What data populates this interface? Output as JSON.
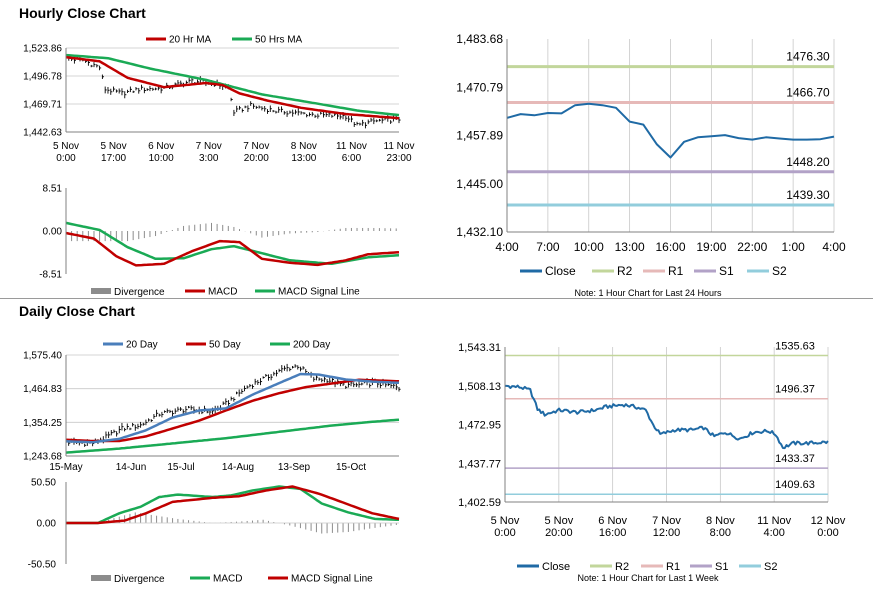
{
  "sections": {
    "hourly_title": "Hourly Close Chart",
    "daily_title": "Daily Close Chart"
  },
  "colors": {
    "ma20": "#c00000",
    "ma50": "#1aaa55",
    "price": "#000000",
    "hist": "#8c8c8c",
    "macd_h": "#c00000",
    "signal_h": "#1aaa55",
    "macd_d": "#1aaa55",
    "signal_d": "#c00000",
    "close": "#1f6aa5",
    "r2": "#c2d69b",
    "r1": "#e6b9b8",
    "s1": "#b2a2c7",
    "s2": "#92cddc",
    "ma20_d": "#4a7ebb",
    "ma50_d": "#c00000",
    "ma200_d": "#1aaa55",
    "axis": "#808080"
  },
  "chart_data": [
    {
      "id": "hourly_price",
      "type": "line",
      "legend": [
        "20 Hr MA",
        "50 Hrs MA"
      ],
      "x_tick_labels": [
        "5 Nov\n0:00",
        "5 Nov\n17:00",
        "6 Nov\n10:00",
        "7 Nov\n3:00",
        "7 Nov\n20:00",
        "8 Nov\n13:00",
        "11 Nov\n6:00",
        "11 Nov\n23:00"
      ],
      "y_tick_labels": [
        "1,523.86",
        "1,496.78",
        "1,469.71",
        "1,442.63"
      ],
      "ylim": [
        1442.63,
        1523.86
      ],
      "n": 120,
      "series": [
        {
          "name": "Price",
          "color_key": "price",
          "anchors": [
            [
              0,
              1514
            ],
            [
              6,
              1512
            ],
            [
              12,
              1505
            ],
            [
              14,
              1484
            ],
            [
              20,
              1480
            ],
            [
              26,
              1484
            ],
            [
              35,
              1485
            ],
            [
              45,
              1492
            ],
            [
              52,
              1490
            ],
            [
              58,
              1486
            ],
            [
              60,
              1462
            ],
            [
              66,
              1468
            ],
            [
              75,
              1463
            ],
            [
              90,
              1459
            ],
            [
              100,
              1458
            ],
            [
              104,
              1449
            ],
            [
              110,
              1453
            ],
            [
              119,
              1455
            ]
          ]
        },
        {
          "name": "20 Hr MA",
          "color_key": "ma20",
          "anchors": [
            [
              0,
              1515
            ],
            [
              12,
              1511
            ],
            [
              22,
              1495
            ],
            [
              35,
              1486
            ],
            [
              50,
              1490
            ],
            [
              56,
              1488
            ],
            [
              62,
              1480
            ],
            [
              72,
              1473
            ],
            [
              84,
              1466
            ],
            [
              100,
              1460
            ],
            [
              119,
              1456
            ]
          ]
        },
        {
          "name": "50 Hrs MA",
          "color_key": "ma50",
          "anchors": [
            [
              0,
              1517
            ],
            [
              15,
              1514
            ],
            [
              30,
              1504
            ],
            [
              50,
              1493
            ],
            [
              70,
              1479
            ],
            [
              90,
              1470
            ],
            [
              105,
              1463
            ],
            [
              119,
              1459
            ]
          ]
        }
      ]
    },
    {
      "id": "hourly_macd",
      "type": "line",
      "legend": [
        "Divergence",
        "MACD",
        "MACD Signal Line"
      ],
      "y_tick_labels": [
        "8.51",
        "0.00",
        "-8.51"
      ],
      "ylim": [
        -8.51,
        8.51
      ],
      "n": 120,
      "series": [
        {
          "name": "MACD",
          "color_key": "macd_h",
          "anchors": [
            [
              0,
              -0.4
            ],
            [
              10,
              -1.5
            ],
            [
              18,
              -5
            ],
            [
              25,
              -6.8
            ],
            [
              35,
              -6.5
            ],
            [
              45,
              -4
            ],
            [
              55,
              -2
            ],
            [
              62,
              -2.2
            ],
            [
              70,
              -5.5
            ],
            [
              80,
              -6.3
            ],
            [
              90,
              -6.7
            ],
            [
              100,
              -5.8
            ],
            [
              108,
              -4.6
            ],
            [
              119,
              -4.2
            ]
          ]
        },
        {
          "name": "MACD Signal Line",
          "color_key": "signal_h",
          "anchors": [
            [
              0,
              1.6
            ],
            [
              12,
              0.2
            ],
            [
              22,
              -3.2
            ],
            [
              32,
              -5.5
            ],
            [
              42,
              -5.4
            ],
            [
              52,
              -3.6
            ],
            [
              60,
              -3.0
            ],
            [
              70,
              -4.4
            ],
            [
              80,
              -5.8
            ],
            [
              95,
              -6.5
            ],
            [
              108,
              -5.2
            ],
            [
              119,
              -4.8
            ]
          ]
        },
        {
          "name": "Divergence",
          "color_key": "hist",
          "anchors": [
            [
              0,
              -2
            ],
            [
              12,
              -2
            ],
            [
              22,
              -2
            ],
            [
              32,
              -1
            ],
            [
              42,
              1
            ],
            [
              52,
              1.6
            ],
            [
              60,
              0.8
            ],
            [
              70,
              -1.3
            ],
            [
              80,
              -0.5
            ],
            [
              90,
              -0.2
            ],
            [
              100,
              0.6
            ],
            [
              110,
              0.6
            ],
            [
              119,
              0.5
            ]
          ]
        }
      ]
    },
    {
      "id": "hourly_pivots",
      "type": "line",
      "legend": [
        "Close",
        "R2",
        "R1",
        "S1",
        "S2"
      ],
      "note": "Note: 1 Hour Chart for Last 24 Hours",
      "x_tick_labels": [
        "4:00",
        "7:00",
        "10:00",
        "13:00",
        "16:00",
        "19:00",
        "22:00",
        "1:00",
        "4:00"
      ],
      "y_tick_labels": [
        "1,483.68",
        "1,470.79",
        "1,457.89",
        "1,445.00",
        "1,432.10"
      ],
      "ylim": [
        1432.1,
        1483.68
      ],
      "levels": [
        {
          "name": "R2",
          "value": 1476.3,
          "label": "1476.30"
        },
        {
          "name": "R1",
          "value": 1466.7,
          "label": "1466.70"
        },
        {
          "name": "S1",
          "value": 1448.2,
          "label": "1448.20"
        },
        {
          "name": "S2",
          "value": 1439.3,
          "label": "1439.30"
        }
      ],
      "close_x": [
        0,
        1,
        2,
        3,
        4,
        5,
        6,
        7,
        8,
        9,
        10,
        11,
        12,
        13,
        14,
        15,
        16,
        17,
        18,
        19,
        20,
        21,
        22,
        23,
        24
      ],
      "close_y": [
        1462.6,
        1463.6,
        1463.3,
        1463.9,
        1463.8,
        1466.0,
        1466.4,
        1466.0,
        1465.3,
        1461.6,
        1460.8,
        1455.5,
        1452.0,
        1456.2,
        1457.4,
        1457.7,
        1458.0,
        1457.2,
        1456.8,
        1457.4,
        1457.1,
        1456.8,
        1456.8,
        1456.9,
        1457.6
      ]
    },
    {
      "id": "daily_price",
      "type": "line",
      "legend": [
        "20 Day",
        "50 Day",
        "200 Day"
      ],
      "x_tick_labels": [
        "15-May",
        "14-Jun",
        "15-Jul",
        "14-Aug",
        "13-Sep",
        "15-Oct"
      ],
      "y_tick_labels": [
        "1,575.40",
        "1,464.83",
        "1,354.25",
        "1,243.68"
      ],
      "ylim": [
        1243.68,
        1575.4
      ],
      "n": 126,
      "series": [
        {
          "name": "Price",
          "color_key": "price",
          "anchors": [
            [
              0,
              1290
            ],
            [
              5,
              1287
            ],
            [
              10,
              1286
            ],
            [
              15,
              1305
            ],
            [
              21,
              1333
            ],
            [
              28,
              1345
            ],
            [
              35,
              1382
            ],
            [
              45,
              1397
            ],
            [
              55,
              1390
            ],
            [
              60,
              1415
            ],
            [
              68,
              1471
            ],
            [
              76,
              1505
            ],
            [
              82,
              1530
            ],
            [
              87,
              1540
            ],
            [
              93,
              1498
            ],
            [
              98,
              1495
            ],
            [
              104,
              1476
            ],
            [
              110,
              1477
            ],
            [
              116,
              1485
            ],
            [
              120,
              1476
            ],
            [
              123,
              1472
            ],
            [
              125,
              1466
            ]
          ]
        },
        {
          "name": "20 Day",
          "color_key": "ma20_d",
          "anchors": [
            [
              0,
              1292
            ],
            [
              10,
              1289
            ],
            [
              20,
              1300
            ],
            [
              30,
              1328
            ],
            [
              40,
              1370
            ],
            [
              50,
              1393
            ],
            [
              60,
              1400
            ],
            [
              70,
              1445
            ],
            [
              80,
              1483
            ],
            [
              88,
              1513
            ],
            [
              95,
              1511
            ],
            [
              105,
              1495
            ],
            [
              115,
              1488
            ],
            [
              125,
              1484
            ]
          ]
        },
        {
          "name": "50 Day",
          "color_key": "ma50_d",
          "anchors": [
            [
              0,
              1297
            ],
            [
              10,
              1293
            ],
            [
              20,
              1293
            ],
            [
              30,
              1308
            ],
            [
              40,
              1334
            ],
            [
              50,
              1360
            ],
            [
              60,
              1393
            ],
            [
              70,
              1425
            ],
            [
              80,
              1450
            ],
            [
              90,
              1470
            ],
            [
              100,
              1482
            ],
            [
              110,
              1494
            ],
            [
              125,
              1489
            ]
          ]
        },
        {
          "name": "200 Day",
          "color_key": "ma200_d",
          "anchors": [
            [
              0,
              1255
            ],
            [
              20,
              1268
            ],
            [
              40,
              1285
            ],
            [
              60,
              1302
            ],
            [
              80,
              1323
            ],
            [
              100,
              1344
            ],
            [
              115,
              1356
            ],
            [
              125,
              1363
            ]
          ]
        }
      ]
    },
    {
      "id": "daily_macd",
      "type": "line",
      "legend": [
        "Divergence",
        "MACD",
        "MACD Signal Line"
      ],
      "y_tick_labels": [
        "50.50",
        "0.00",
        "-50.50"
      ],
      "ylim": [
        -50.5,
        50.5
      ],
      "n": 126,
      "series": [
        {
          "name": "MACD",
          "color_key": "macd_d",
          "anchors": [
            [
              0,
              0
            ],
            [
              12,
              0
            ],
            [
              20,
              12
            ],
            [
              28,
              20
            ],
            [
              35,
              32
            ],
            [
              42,
              35
            ],
            [
              55,
              32
            ],
            [
              62,
              34
            ],
            [
              70,
              40
            ],
            [
              80,
              45
            ],
            [
              88,
              42
            ],
            [
              96,
              24
            ],
            [
              106,
              13
            ],
            [
              116,
              5
            ],
            [
              125,
              4
            ]
          ]
        },
        {
          "name": "MACD Signal Line",
          "color_key": "signal_d",
          "anchors": [
            [
              0,
              0
            ],
            [
              12,
              0
            ],
            [
              22,
              3
            ],
            [
              30,
              12
            ],
            [
              40,
              26
            ],
            [
              55,
              31
            ],
            [
              65,
              33
            ],
            [
              75,
              40
            ],
            [
              85,
              45
            ],
            [
              95,
              36
            ],
            [
              105,
              24
            ],
            [
              115,
              12
            ],
            [
              125,
              5
            ]
          ]
        },
        {
          "name": "Divergence",
          "color_key": "hist",
          "anchors": [
            [
              0,
              0
            ],
            [
              12,
              0
            ],
            [
              18,
              6
            ],
            [
              26,
              13
            ],
            [
              34,
              9
            ],
            [
              42,
              5
            ],
            [
              55,
              0
            ],
            [
              66,
              2
            ],
            [
              74,
              4
            ],
            [
              84,
              -3
            ],
            [
              96,
              -13
            ],
            [
              106,
              -11
            ],
            [
              116,
              -6
            ],
            [
              125,
              -2
            ]
          ]
        }
      ]
    },
    {
      "id": "daily_pivots",
      "type": "line",
      "legend": [
        "Close",
        "R2",
        "R1",
        "S1",
        "S2"
      ],
      "note": "Note: 1 Hour Chart for Last 1 Week",
      "x_tick_labels": [
        "5 Nov\n0:00",
        "5 Nov\n20:00",
        "6 Nov\n16:00",
        "7 Nov\n12:00",
        "8 Nov\n8:00",
        "11 Nov\n4:00",
        "12 Nov\n0:00"
      ],
      "y_tick_labels": [
        "1,543.31",
        "1,508.13",
        "1,472.95",
        "1,437.77",
        "1,402.59"
      ],
      "ylim": [
        1402.59,
        1543.31
      ],
      "levels": [
        {
          "name": "R2",
          "value": 1535.63,
          "label": "1535.63"
        },
        {
          "name": "R1",
          "value": 1496.37,
          "label": "1496.37"
        },
        {
          "name": "S1",
          "value": 1433.37,
          "label": "1433.37"
        },
        {
          "name": "S2",
          "value": 1409.63,
          "label": "1409.63"
        }
      ],
      "n": 180,
      "close_anchors": [
        [
          0,
          1508
        ],
        [
          8,
          1507
        ],
        [
          14,
          1504
        ],
        [
          18,
          1487
        ],
        [
          22,
          1482
        ],
        [
          30,
          1486
        ],
        [
          40,
          1484
        ],
        [
          50,
          1486
        ],
        [
          56,
          1489
        ],
        [
          66,
          1491
        ],
        [
          72,
          1489
        ],
        [
          78,
          1486
        ],
        [
          82,
          1473
        ],
        [
          86,
          1464
        ],
        [
          94,
          1468
        ],
        [
          104,
          1468
        ],
        [
          110,
          1470
        ],
        [
          116,
          1462
        ],
        [
          122,
          1466
        ],
        [
          130,
          1460
        ],
        [
          138,
          1466
        ],
        [
          146,
          1467
        ],
        [
          150,
          1464
        ],
        [
          154,
          1452
        ],
        [
          160,
          1456
        ],
        [
          168,
          1456
        ],
        [
          179,
          1457
        ]
      ]
    }
  ]
}
